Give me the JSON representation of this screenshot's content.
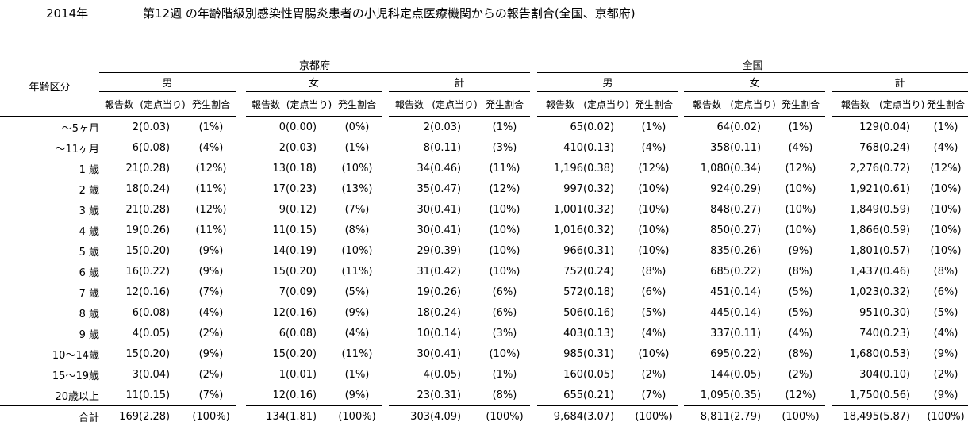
{
  "title": {
    "year": "2014年",
    "main": "第12週 の年齢階級別感染性胃腸炎患者の小児科定点医療機関からの報告割合(全国、京都府)"
  },
  "table": {
    "age_header": "年齢区分",
    "region_headers": [
      "京都府",
      "全国"
    ],
    "sex_headers": [
      "男",
      "女",
      "計"
    ],
    "sub_headers": [
      "報告数",
      "(定点当り)",
      "発生割合"
    ],
    "rows": [
      {
        "age": "～5ヶ月",
        "groups": [
          [
            "2",
            "(0.03)",
            "(1%)"
          ],
          [
            "0",
            "(0.00)",
            "(0%)"
          ],
          [
            "2",
            "(0.03)",
            "(1%)"
          ],
          [
            "65",
            "(0.02)",
            "(1%)"
          ],
          [
            "64",
            "(0.02)",
            "(1%)"
          ],
          [
            "129",
            "(0.04)",
            "(1%)"
          ]
        ]
      },
      {
        "age": "～11ヶ月",
        "groups": [
          [
            "6",
            "(0.08)",
            "(4%)"
          ],
          [
            "2",
            "(0.03)",
            "(1%)"
          ],
          [
            "8",
            "(0.11)",
            "(3%)"
          ],
          [
            "410",
            "(0.13)",
            "(4%)"
          ],
          [
            "358",
            "(0.11)",
            "(4%)"
          ],
          [
            "768",
            "(0.24)",
            "(4%)"
          ]
        ]
      },
      {
        "age": "1 歳",
        "groups": [
          [
            "21",
            "(0.28)",
            "(12%)"
          ],
          [
            "13",
            "(0.18)",
            "(10%)"
          ],
          [
            "34",
            "(0.46)",
            "(11%)"
          ],
          [
            "1,196",
            "(0.38)",
            "(12%)"
          ],
          [
            "1,080",
            "(0.34)",
            "(12%)"
          ],
          [
            "2,276",
            "(0.72)",
            "(12%)"
          ]
        ]
      },
      {
        "age": "2 歳",
        "groups": [
          [
            "18",
            "(0.24)",
            "(11%)"
          ],
          [
            "17",
            "(0.23)",
            "(13%)"
          ],
          [
            "35",
            "(0.47)",
            "(12%)"
          ],
          [
            "997",
            "(0.32)",
            "(10%)"
          ],
          [
            "924",
            "(0.29)",
            "(10%)"
          ],
          [
            "1,921",
            "(0.61)",
            "(10%)"
          ]
        ]
      },
      {
        "age": "3 歳",
        "groups": [
          [
            "21",
            "(0.28)",
            "(12%)"
          ],
          [
            "9",
            "(0.12)",
            "(7%)"
          ],
          [
            "30",
            "(0.41)",
            "(10%)"
          ],
          [
            "1,001",
            "(0.32)",
            "(10%)"
          ],
          [
            "848",
            "(0.27)",
            "(10%)"
          ],
          [
            "1,849",
            "(0.59)",
            "(10%)"
          ]
        ]
      },
      {
        "age": "4 歳",
        "groups": [
          [
            "19",
            "(0.26)",
            "(11%)"
          ],
          [
            "11",
            "(0.15)",
            "(8%)"
          ],
          [
            "30",
            "(0.41)",
            "(10%)"
          ],
          [
            "1,016",
            "(0.32)",
            "(10%)"
          ],
          [
            "850",
            "(0.27)",
            "(10%)"
          ],
          [
            "1,866",
            "(0.59)",
            "(10%)"
          ]
        ]
      },
      {
        "age": "5 歳",
        "groups": [
          [
            "15",
            "(0.20)",
            "(9%)"
          ],
          [
            "14",
            "(0.19)",
            "(10%)"
          ],
          [
            "29",
            "(0.39)",
            "(10%)"
          ],
          [
            "966",
            "(0.31)",
            "(10%)"
          ],
          [
            "835",
            "(0.26)",
            "(9%)"
          ],
          [
            "1,801",
            "(0.57)",
            "(10%)"
          ]
        ]
      },
      {
        "age": "6 歳",
        "groups": [
          [
            "16",
            "(0.22)",
            "(9%)"
          ],
          [
            "15",
            "(0.20)",
            "(11%)"
          ],
          [
            "31",
            "(0.42)",
            "(10%)"
          ],
          [
            "752",
            "(0.24)",
            "(8%)"
          ],
          [
            "685",
            "(0.22)",
            "(8%)"
          ],
          [
            "1,437",
            "(0.46)",
            "(8%)"
          ]
        ]
      },
      {
        "age": "7 歳",
        "groups": [
          [
            "12",
            "(0.16)",
            "(7%)"
          ],
          [
            "7",
            "(0.09)",
            "(5%)"
          ],
          [
            "19",
            "(0.26)",
            "(6%)"
          ],
          [
            "572",
            "(0.18)",
            "(6%)"
          ],
          [
            "451",
            "(0.14)",
            "(5%)"
          ],
          [
            "1,023",
            "(0.32)",
            "(6%)"
          ]
        ]
      },
      {
        "age": "8 歳",
        "groups": [
          [
            "6",
            "(0.08)",
            "(4%)"
          ],
          [
            "12",
            "(0.16)",
            "(9%)"
          ],
          [
            "18",
            "(0.24)",
            "(6%)"
          ],
          [
            "506",
            "(0.16)",
            "(5%)"
          ],
          [
            "445",
            "(0.14)",
            "(5%)"
          ],
          [
            "951",
            "(0.30)",
            "(5%)"
          ]
        ]
      },
      {
        "age": "9 歳",
        "groups": [
          [
            "4",
            "(0.05)",
            "(2%)"
          ],
          [
            "6",
            "(0.08)",
            "(4%)"
          ],
          [
            "10",
            "(0.14)",
            "(3%)"
          ],
          [
            "403",
            "(0.13)",
            "(4%)"
          ],
          [
            "337",
            "(0.11)",
            "(4%)"
          ],
          [
            "740",
            "(0.23)",
            "(4%)"
          ]
        ]
      },
      {
        "age": "10～14歳",
        "groups": [
          [
            "15",
            "(0.20)",
            "(9%)"
          ],
          [
            "15",
            "(0.20)",
            "(11%)"
          ],
          [
            "30",
            "(0.41)",
            "(10%)"
          ],
          [
            "985",
            "(0.31)",
            "(10%)"
          ],
          [
            "695",
            "(0.22)",
            "(8%)"
          ],
          [
            "1,680",
            "(0.53)",
            "(9%)"
          ]
        ]
      },
      {
        "age": "15～19歳",
        "groups": [
          [
            "3",
            "(0.04)",
            "(2%)"
          ],
          [
            "1",
            "(0.01)",
            "(1%)"
          ],
          [
            "4",
            "(0.05)",
            "(1%)"
          ],
          [
            "160",
            "(0.05)",
            "(2%)"
          ],
          [
            "144",
            "(0.05)",
            "(2%)"
          ],
          [
            "304",
            "(0.10)",
            "(2%)"
          ]
        ]
      },
      {
        "age": "20歳以上",
        "groups": [
          [
            "11",
            "(0.15)",
            "(7%)"
          ],
          [
            "12",
            "(0.16)",
            "(9%)"
          ],
          [
            "23",
            "(0.31)",
            "(8%)"
          ],
          [
            "655",
            "(0.21)",
            "(7%)"
          ],
          [
            "1,095",
            "(0.35)",
            "(12%)"
          ],
          [
            "1,750",
            "(0.56)",
            "(9%)"
          ]
        ]
      }
    ],
    "total_row": {
      "age": "合計",
      "groups": [
        [
          "169",
          "(2.28)",
          "(100%)"
        ],
        [
          "134",
          "(1.81)",
          "(100%)"
        ],
        [
          "303",
          "(4.09)",
          "(100%)"
        ],
        [
          "9,684",
          "(3.07)",
          "(100%)"
        ],
        [
          "8,811",
          "(2.79)",
          "(100%)"
        ],
        [
          "18,495",
          "(5.87)",
          "(100%)"
        ]
      ]
    }
  }
}
